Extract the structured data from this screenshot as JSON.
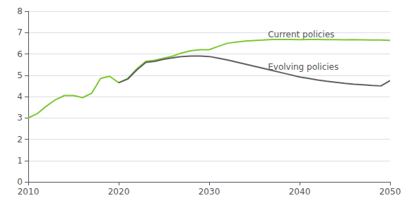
{
  "chart_data": {
    "type": "line",
    "x": [
      2010,
      2011,
      2012,
      2013,
      2014,
      2015,
      2016,
      2017,
      2018,
      2019,
      2020,
      2021,
      2022,
      2023,
      2024,
      2025,
      2026,
      2027,
      2028,
      2029,
      2030,
      2031,
      2032,
      2033,
      2034,
      2035,
      2036,
      2037,
      2038,
      2039,
      2040,
      2041,
      2042,
      2043,
      2044,
      2045,
      2046,
      2047,
      2048,
      2049,
      2050
    ],
    "series": [
      {
        "name": "Current policies",
        "color": "#7dc832",
        "values": [
          3.0,
          3.2,
          3.55,
          3.85,
          4.05,
          4.05,
          3.95,
          4.15,
          4.85,
          4.95,
          4.65,
          4.85,
          5.3,
          5.65,
          5.7,
          5.8,
          5.9,
          6.05,
          6.15,
          6.2,
          6.2,
          6.35,
          6.5,
          6.55,
          6.6,
          6.63,
          6.65,
          6.68,
          6.68,
          6.68,
          6.67,
          6.68,
          6.68,
          6.67,
          6.67,
          6.66,
          6.67,
          6.66,
          6.65,
          6.65,
          6.64
        ]
      },
      {
        "name": "Evolving policies",
        "color": "#606060",
        "values": [
          null,
          null,
          null,
          null,
          null,
          null,
          null,
          null,
          null,
          null,
          4.65,
          4.82,
          5.25,
          5.6,
          5.65,
          5.75,
          5.82,
          5.88,
          5.9,
          5.9,
          5.88,
          5.8,
          5.72,
          5.62,
          5.52,
          5.42,
          5.32,
          5.22,
          5.12,
          5.02,
          4.92,
          4.85,
          4.78,
          4.72,
          4.67,
          4.62,
          4.58,
          4.55,
          4.52,
          4.5,
          4.75
        ]
      }
    ],
    "annotations": [
      {
        "text": "Current policies",
        "x": 2036.5,
        "y": 7.1
      },
      {
        "text": "Evolving policies",
        "x": 2036.5,
        "y": 5.6
      }
    ],
    "xlim": [
      2010,
      2050
    ],
    "xticks": [
      2010,
      2020,
      2030,
      2040,
      2050
    ],
    "ylim": [
      0,
      8
    ],
    "yticks": [
      0,
      1,
      2,
      3,
      4,
      5,
      6,
      7,
      8
    ],
    "grid": true
  }
}
